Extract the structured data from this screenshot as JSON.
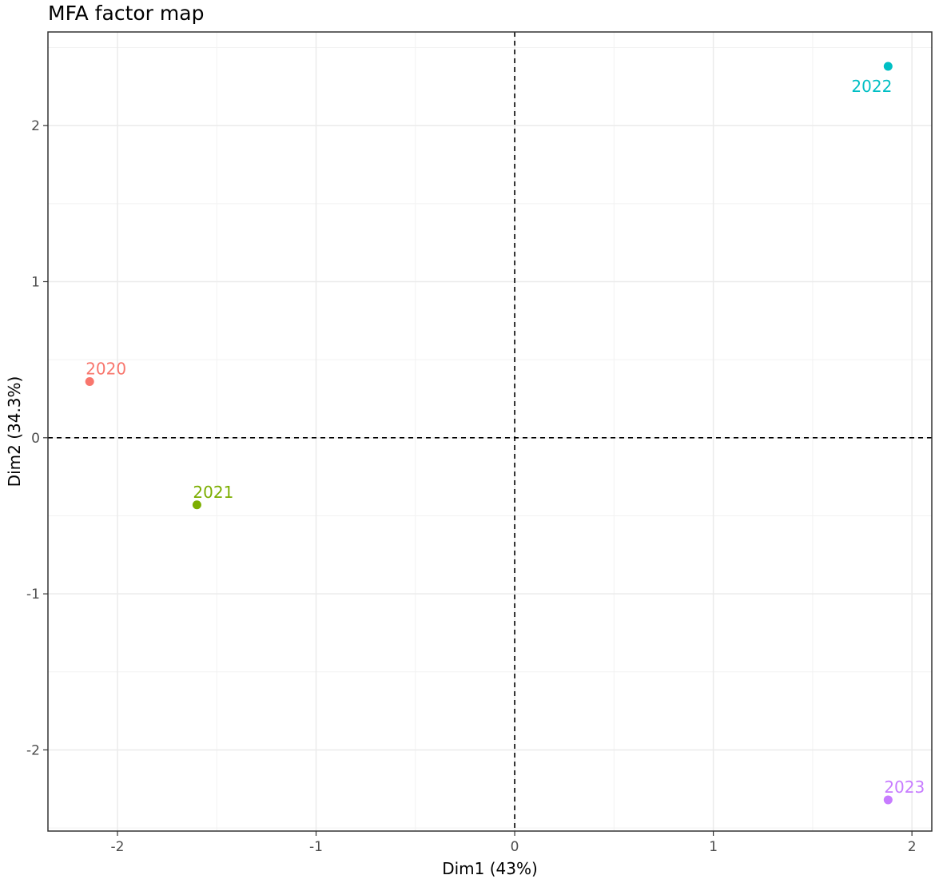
{
  "chart_data": {
    "type": "scatter",
    "title": "MFA factor map",
    "xlabel": "Dim1 (43%)",
    "ylabel": "Dim2 (34.3%)",
    "xlim": [
      -2.35,
      2.1
    ],
    "ylim": [
      -2.52,
      2.6
    ],
    "x_ticks": [
      -2,
      -1,
      0,
      1,
      2
    ],
    "y_ticks": [
      -2,
      -1,
      0,
      1,
      2
    ],
    "x_tick_labels": [
      "-2",
      "-1",
      "0",
      "1",
      "2"
    ],
    "y_tick_labels": [
      "-2",
      "-1",
      "0",
      "1",
      "2"
    ],
    "grid": true,
    "reference_lines": {
      "x": 0,
      "y": 0,
      "style": "dashed"
    },
    "points": [
      {
        "label": "2020",
        "x": -2.14,
        "y": 0.36,
        "color": "#F8766D"
      },
      {
        "label": "2021",
        "x": -1.6,
        "y": -0.43,
        "color": "#7CAE00"
      },
      {
        "label": "2022",
        "x": 1.88,
        "y": 2.38,
        "color": "#00BFC4"
      },
      {
        "label": "2023",
        "x": 1.88,
        "y": -2.32,
        "color": "#C77CFF"
      }
    ]
  }
}
